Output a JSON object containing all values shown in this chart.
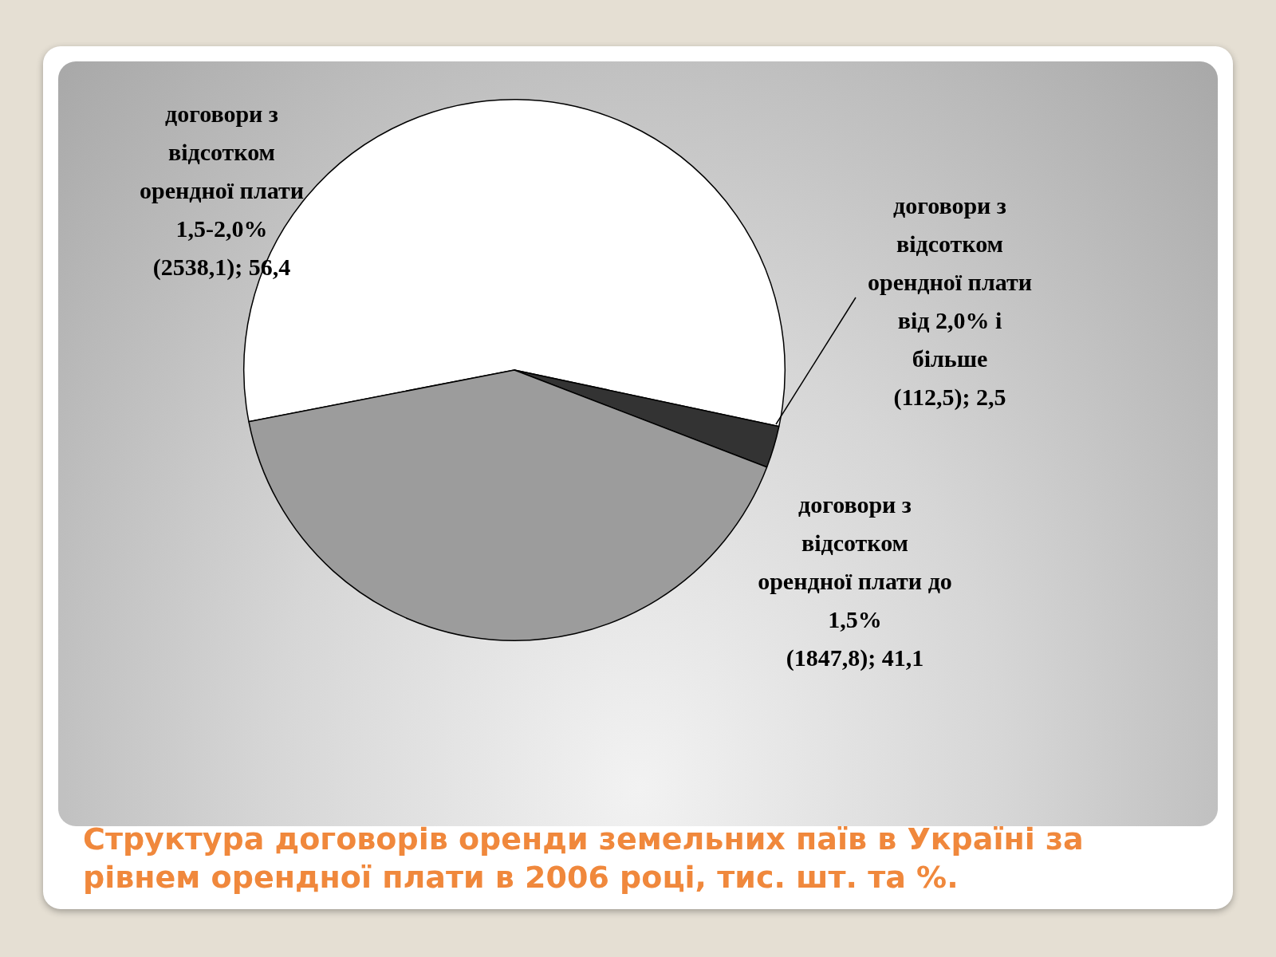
{
  "chart_data": {
    "type": "pie",
    "title": "Структура договорів оренди земельних паїв в Україні за рівнем орендної плати в 2006 році, тис. шт. та %.",
    "categories": [
      "договори з відсотком орендної плати 1,5-2,0%",
      "договори з відсотком орендної плати від 2,0% і більше",
      "договори з відсотком орендної плати до 1,5%"
    ],
    "values": [
      56.4,
      2.5,
      41.1
    ],
    "colors": [
      "#ffffff",
      "#333333",
      "#9c9c9c"
    ],
    "value_labels": [
      "(2538,1); 56,4",
      "(112,5); 2,5",
      "(1847,8); 41,1"
    ],
    "legend": false
  }
}
